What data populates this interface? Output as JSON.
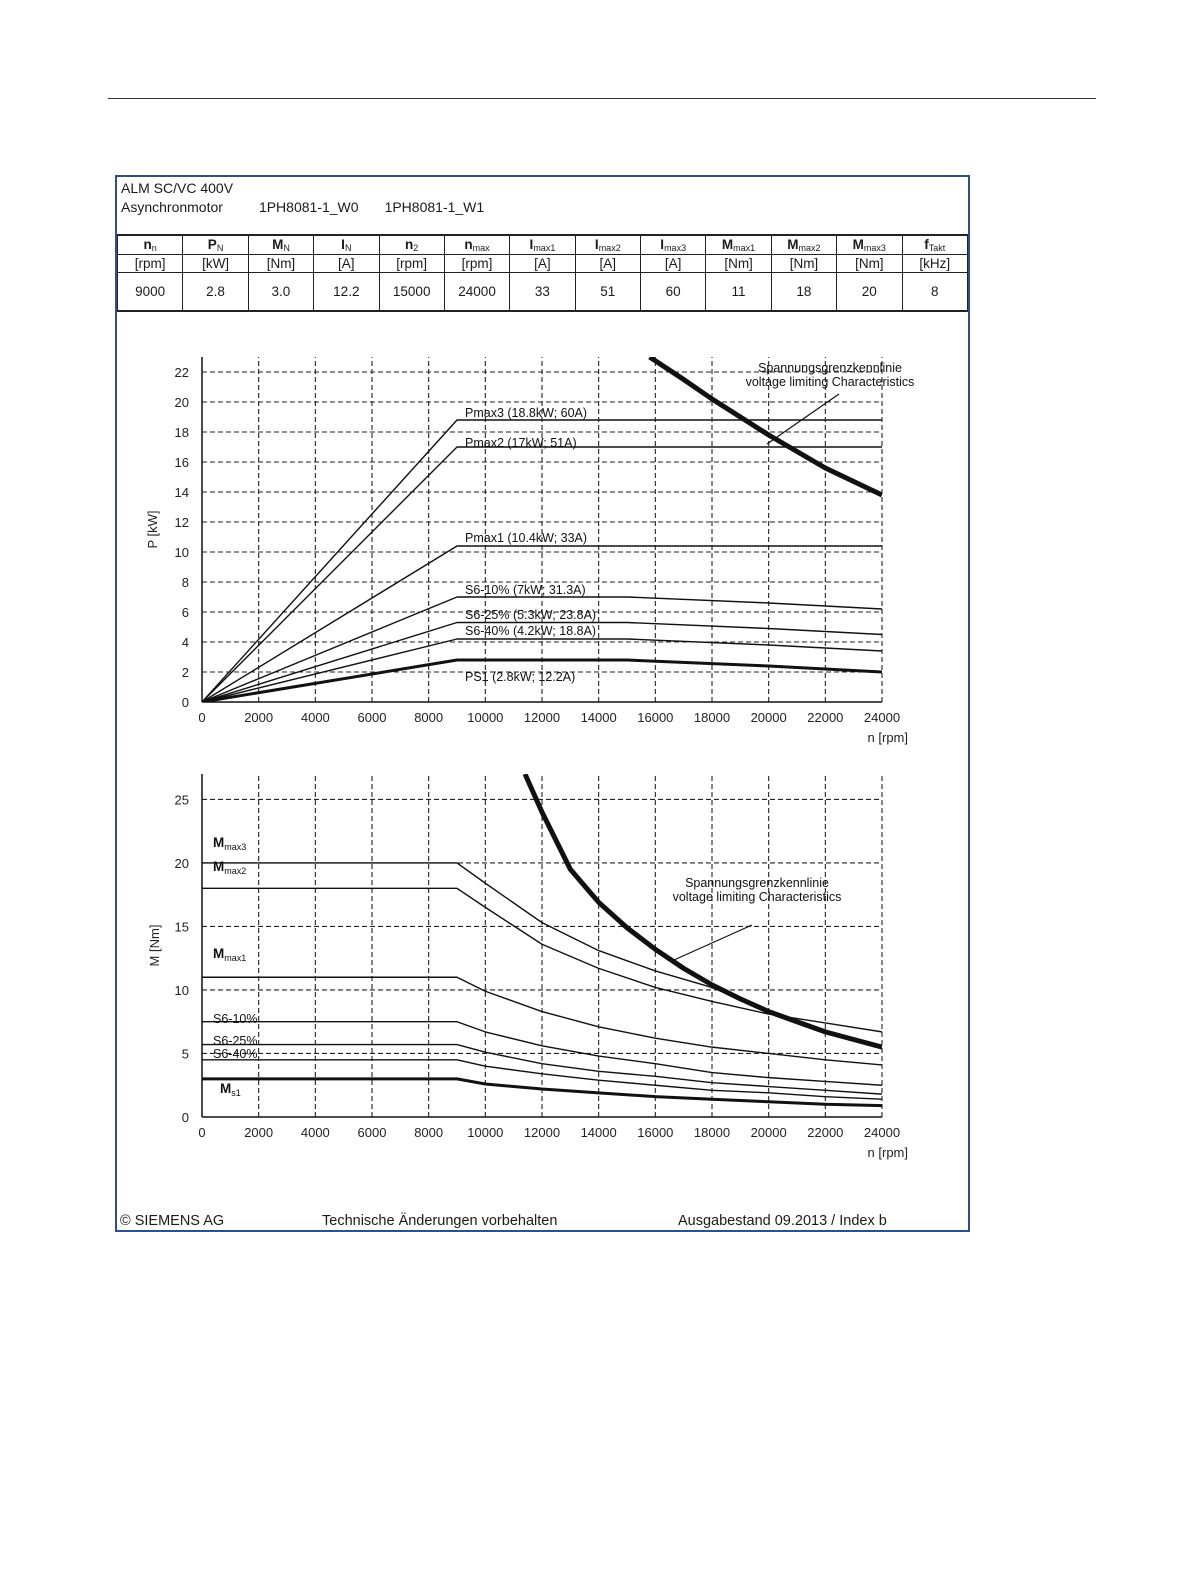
{
  "header": {
    "line1": "ALM SC/VC 400V",
    "motor_label": "Asynchronmotor",
    "model1": "1PH8081-1_W0",
    "model2": "1PH8081-1_W1"
  },
  "spec_table": {
    "columns": [
      {
        "sym": "n",
        "sub": "n",
        "unit": "[rpm]",
        "value": "9000"
      },
      {
        "sym": "P",
        "sub": "N",
        "unit": "[kW]",
        "value": "2.8"
      },
      {
        "sym": "M",
        "sub": "N",
        "unit": "[Nm]",
        "value": "3.0"
      },
      {
        "sym": "I",
        "sub": "N",
        "unit": "[A]",
        "value": "12.2"
      },
      {
        "sym": "n",
        "sub": "2",
        "unit": "[rpm]",
        "value": "15000"
      },
      {
        "sym": "n",
        "sub": "max",
        "unit": "[rpm]",
        "value": "24000"
      },
      {
        "sym": "I",
        "sub": "max1",
        "unit": "[A]",
        "value": "33"
      },
      {
        "sym": "I",
        "sub": "max2",
        "unit": "[A]",
        "value": "51"
      },
      {
        "sym": "I",
        "sub": "max3",
        "unit": "[A]",
        "value": "60"
      },
      {
        "sym": "M",
        "sub": "max1",
        "unit": "[Nm]",
        "value": "11"
      },
      {
        "sym": "M",
        "sub": "max2",
        "unit": "[Nm]",
        "value": "18"
      },
      {
        "sym": "M",
        "sub": "max3",
        "unit": "[Nm]",
        "value": "20"
      },
      {
        "sym": "f",
        "sub": "Takt",
        "unit": "[kHz]",
        "value": "8"
      }
    ]
  },
  "chart_data": [
    {
      "type": "line",
      "xlabel": "n [rpm]",
      "ylabel": "P [kW]",
      "xlim": [
        0,
        24000
      ],
      "ylim": [
        0,
        23
      ],
      "xticks": [
        0,
        2000,
        4000,
        6000,
        8000,
        10000,
        12000,
        14000,
        16000,
        18000,
        20000,
        22000,
        24000
      ],
      "yticks": [
        0,
        2,
        4,
        6,
        8,
        10,
        12,
        14,
        16,
        18,
        20,
        22
      ],
      "grid": "dashed",
      "series": [
        {
          "name": "Pmax3 (18.8kW; 60A)",
          "weight": "thin",
          "x": [
            0,
            9000,
            20000,
            24000
          ],
          "y": [
            0,
            18.8,
            18.8,
            18.8
          ]
        },
        {
          "name": "Pmax2 (17kW; 51A)",
          "weight": "thin",
          "x": [
            0,
            9000,
            20000,
            24000
          ],
          "y": [
            0,
            17.0,
            17.0,
            17.0
          ]
        },
        {
          "name": "Pmax1 (10.4kW; 33A)",
          "weight": "thin",
          "x": [
            0,
            9000,
            24000
          ],
          "y": [
            0,
            10.4,
            10.4
          ]
        },
        {
          "name": "S6-10% (7kW; 31.3A)",
          "weight": "thin",
          "x": [
            0,
            9000,
            15000,
            20000,
            24000
          ],
          "y": [
            0,
            7.0,
            7.0,
            6.6,
            6.2
          ]
        },
        {
          "name": "S6-25% (5.3kW; 23.8A)",
          "weight": "thin",
          "x": [
            0,
            9000,
            15000,
            20000,
            24000
          ],
          "y": [
            0,
            5.3,
            5.3,
            4.9,
            4.5
          ]
        },
        {
          "name": "S6-40% (4.2kW; 18.8A)",
          "weight": "thin",
          "x": [
            0,
            9000,
            15000,
            20000,
            24000
          ],
          "y": [
            0,
            4.2,
            4.2,
            3.8,
            3.4
          ]
        },
        {
          "name": "PS1 (2.8kW; 12.2A)",
          "weight": "thick",
          "x": [
            0,
            9000,
            15000,
            20000,
            24000
          ],
          "y": [
            0,
            2.8,
            2.8,
            2.4,
            2.0
          ]
        },
        {
          "name": "",
          "weight": "heavy",
          "x": [
            15800,
            17000,
            18000,
            19000,
            20000,
            21000,
            22000,
            23000,
            24000
          ],
          "y": [
            23.0,
            21.5,
            20.2,
            19.0,
            17.8,
            16.7,
            15.6,
            14.7,
            13.8
          ]
        }
      ],
      "annotations": [
        {
          "line1": "Spannungsgrenzkennlinie",
          "line2": "voltage limiting  Characteristics"
        }
      ]
    },
    {
      "type": "line",
      "xlabel": "n [rpm]",
      "ylabel": "M [Nm]",
      "xlim": [
        0,
        24000
      ],
      "ylim": [
        0,
        27
      ],
      "xticks": [
        0,
        2000,
        4000,
        6000,
        8000,
        10000,
        12000,
        14000,
        16000,
        18000,
        20000,
        22000,
        24000
      ],
      "yticks": [
        0,
        5,
        10,
        15,
        20,
        25
      ],
      "grid": "dashed",
      "series": [
        {
          "name": "Mmax3",
          "weight": "thin",
          "x": [
            0,
            9000,
            10000,
            12000,
            14000,
            16000,
            18000,
            20000,
            22000,
            24000
          ],
          "y": [
            20,
            20,
            18.4,
            15.3,
            13.1,
            11.5,
            10.2,
            8.3,
            6.7,
            5.5
          ]
        },
        {
          "name": "Mmax2",
          "weight": "thin",
          "x": [
            0,
            9000,
            10000,
            12000,
            14000,
            16000,
            18000,
            20000,
            22000,
            24000
          ],
          "y": [
            18,
            18,
            16.5,
            13.6,
            11.7,
            10.2,
            9.1,
            8.1,
            7.4,
            6.7
          ]
        },
        {
          "name": "Mmax1",
          "weight": "thin",
          "x": [
            0,
            9000,
            10000,
            12000,
            14000,
            16000,
            18000,
            20000,
            22000,
            24000
          ],
          "y": [
            11,
            11,
            9.9,
            8.3,
            7.1,
            6.2,
            5.5,
            5.0,
            4.5,
            4.1
          ]
        },
        {
          "name": "S6-10%",
          "weight": "thin",
          "x": [
            0,
            9000,
            10000,
            12000,
            14000,
            16000,
            18000,
            20000,
            22000,
            24000
          ],
          "y": [
            7.5,
            7.5,
            6.7,
            5.6,
            4.8,
            4.2,
            3.5,
            3.1,
            2.8,
            2.5
          ]
        },
        {
          "name": "S6-25%",
          "weight": "thin",
          "x": [
            0,
            9000,
            10000,
            12000,
            14000,
            16000,
            18000,
            20000,
            22000,
            24000
          ],
          "y": [
            5.7,
            5.7,
            5.1,
            4.2,
            3.6,
            3.2,
            2.7,
            2.4,
            2.1,
            1.8
          ]
        },
        {
          "name": "S6-40%",
          "weight": "thin",
          "x": [
            0,
            9000,
            10000,
            12000,
            14000,
            16000,
            18000,
            20000,
            22000,
            24000
          ],
          "y": [
            4.5,
            4.5,
            4.0,
            3.4,
            2.9,
            2.5,
            2.1,
            1.9,
            1.6,
            1.4
          ]
        },
        {
          "name": "Ms1",
          "weight": "thick",
          "x": [
            0,
            9000,
            10000,
            12000,
            14000,
            16000,
            18000,
            20000,
            22000,
            24000
          ],
          "y": [
            3.0,
            3.0,
            2.6,
            2.2,
            1.9,
            1.6,
            1.4,
            1.2,
            1.0,
            0.9
          ]
        },
        {
          "name": "",
          "weight": "heavy",
          "x": [
            11400,
            12000,
            13000,
            14000,
            15000,
            16000,
            17000,
            18000,
            19000,
            20000,
            21000,
            22000,
            23000,
            24000
          ],
          "y": [
            27.0,
            24.0,
            19.5,
            16.9,
            14.9,
            13.2,
            11.7,
            10.4,
            9.3,
            8.3,
            7.5,
            6.7,
            6.1,
            5.5
          ]
        }
      ],
      "annotations": [
        {
          "line1": "Spannungsgrenzkennlinie",
          "line2": "voltage limiting  Characteristics"
        }
      ]
    }
  ],
  "footer": {
    "left": "© SIEMENS AG",
    "center": "Technische Änderungen vorbehalten",
    "right": "Ausgabestand 09.2013 / Index b"
  }
}
